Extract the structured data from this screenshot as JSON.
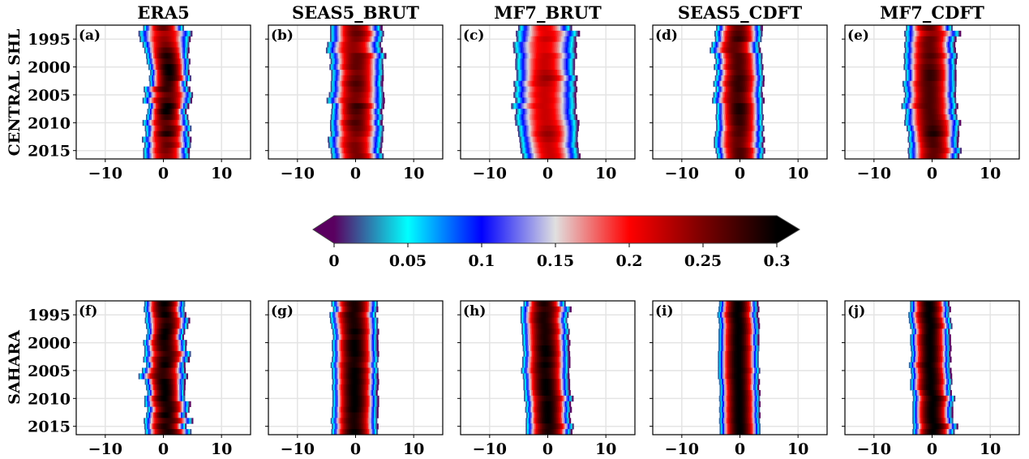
{
  "chart_data": {
    "type": "heatmap",
    "description": "Yearly distributions (density) along x for 10 panels, colored by value",
    "rows": [
      {
        "row_label": "CENTRAL SHL",
        "panels": [
          "a",
          "b",
          "c",
          "d",
          "e"
        ]
      },
      {
        "row_label": "SAHARA",
        "panels": [
          "f",
          "g",
          "h",
          "i",
          "j"
        ]
      }
    ],
    "x_axis": {
      "range": [
        -15,
        15
      ],
      "ticks": [
        -10,
        0,
        10
      ],
      "tick_labels": [
        "−10",
        "0",
        "10"
      ],
      "grid": true
    },
    "y_axis": {
      "range": [
        1992.5,
        2016.5
      ],
      "ticks": [
        1995,
        2000,
        2005,
        2010,
        2015
      ],
      "tick_labels": [
        "1995",
        "2000",
        "2005",
        "2010",
        "2015"
      ],
      "grid": true,
      "inverted": true
    },
    "years": [
      1993,
      1994,
      1995,
      1996,
      1997,
      1998,
      1999,
      2000,
      2001,
      2002,
      2003,
      2004,
      2005,
      2006,
      2007,
      2008,
      2009,
      2010,
      2011,
      2012,
      2013,
      2014,
      2015,
      2016
    ],
    "colorbar": {
      "range": [
        0,
        0.3
      ],
      "ticks": [
        0,
        0.05,
        0.1,
        0.15,
        0.2,
        0.25,
        0.3
      ],
      "tick_labels": [
        "0",
        "0.05",
        "0.1",
        "0.15",
        "0.2",
        "0.25",
        "0.3"
      ],
      "extend": "both",
      "stops": [
        {
          "v": 0.0,
          "color": "#5a0060"
        },
        {
          "v": 0.05,
          "color": "#00ffff"
        },
        {
          "v": 0.1,
          "color": "#0000ff"
        },
        {
          "v": 0.15,
          "color": "#e0e0e0"
        },
        {
          "v": 0.2,
          "color": "#ff0000"
        },
        {
          "v": 0.25,
          "color": "#7a0000"
        },
        {
          "v": 0.3,
          "color": "#000000"
        }
      ]
    },
    "panels": [
      {
        "id": "a",
        "label": "(a)",
        "title": "ERA5",
        "center": [
          0.0,
          0.3,
          0.2,
          0.4,
          0.5,
          0.6,
          0.8,
          0.9,
          1.0,
          1.1,
          0.8,
          0.5,
          0.9,
          0.6,
          0.8,
          0.5,
          0.6,
          0.4,
          0.8,
          0.6,
          0.5,
          0.7,
          0.4,
          0.5
        ],
        "halfwidth": [
          3.5,
          4.6,
          4.3,
          4.0,
          3.8,
          3.6,
          3.7,
          3.5,
          3.3,
          3.6,
          3.2,
          3.9,
          4.1,
          4.2,
          3.4,
          3.3,
          3.6,
          4.0,
          4.0,
          3.7,
          4.2,
          4.0,
          3.9,
          4.0
        ],
        "peak": [
          0.26,
          0.23,
          0.24,
          0.25,
          0.27,
          0.29,
          0.28,
          0.3,
          0.3,
          0.29,
          0.28,
          0.28,
          0.26,
          0.27,
          0.3,
          0.3,
          0.28,
          0.26,
          0.27,
          0.29,
          0.25,
          0.26,
          0.25,
          0.24
        ]
      },
      {
        "id": "b",
        "label": "(b)",
        "title": "SEAS5_BRUT",
        "center": [
          0.0,
          0.2,
          0.1,
          -0.3,
          -0.3,
          0.3,
          0.2,
          0.1,
          0.3,
          0.2,
          0.1,
          0.2,
          0.1,
          -0.1,
          0.3,
          0.1,
          0.2,
          0.0,
          0.2,
          0.2,
          -0.1,
          -0.1,
          0.0,
          0.3
        ],
        "halfwidth": [
          4.4,
          4.6,
          4.5,
          4.6,
          4.8,
          4.8,
          4.5,
          4.6,
          4.5,
          4.4,
          4.4,
          4.5,
          4.7,
          4.9,
          4.4,
          4.3,
          4.5,
          4.4,
          4.6,
          4.5,
          4.7,
          4.6,
          4.3,
          4.5
        ],
        "peak": [
          0.25,
          0.26,
          0.25,
          0.24,
          0.24,
          0.26,
          0.26,
          0.26,
          0.25,
          0.26,
          0.27,
          0.26,
          0.25,
          0.25,
          0.28,
          0.27,
          0.26,
          0.27,
          0.26,
          0.25,
          0.24,
          0.25,
          0.25,
          0.25
        ]
      },
      {
        "id": "c",
        "label": "(c)",
        "title": "MF7_BRUT",
        "center": [
          -0.5,
          -0.1,
          -0.3,
          -0.6,
          -0.6,
          -0.3,
          -0.5,
          -0.5,
          -0.4,
          -0.2,
          -0.6,
          -0.4,
          -0.6,
          -0.4,
          -0.7,
          -0.4,
          -0.4,
          -0.2,
          0.0,
          0.0,
          0.1,
          0.1,
          0.3,
          0.5
        ],
        "halfwidth": [
          4.6,
          5.4,
          5.1,
          5.4,
          5.3,
          5.2,
          5.1,
          5.1,
          5.0,
          5.2,
          5.3,
          5.3,
          5.3,
          5.2,
          5.6,
          5.1,
          5.3,
          5.4,
          5.2,
          5.1,
          5.0,
          4.9,
          5.0,
          4.9
        ],
        "peak": [
          0.21,
          0.21,
          0.22,
          0.21,
          0.21,
          0.22,
          0.22,
          0.22,
          0.23,
          0.24,
          0.23,
          0.22,
          0.22,
          0.22,
          0.22,
          0.22,
          0.22,
          0.22,
          0.23,
          0.24,
          0.23,
          0.22,
          0.22,
          0.22
        ]
      },
      {
        "id": "d",
        "label": "(d)",
        "title": "SEAS5_CDFT",
        "center": [
          -0.2,
          -0.3,
          -0.3,
          -0.8,
          -0.9,
          -0.3,
          -0.2,
          -0.3,
          -0.1,
          -0.1,
          -0.3,
          -0.2,
          -0.4,
          -0.4,
          -0.1,
          -0.1,
          -0.1,
          -0.1,
          0.0,
          -0.2,
          -0.2,
          -0.3,
          0.0,
          0.0
        ],
        "halfwidth": [
          3.9,
          4.1,
          4.0,
          4.1,
          4.3,
          4.1,
          4.0,
          4.2,
          4.0,
          4.2,
          4.3,
          4.0,
          4.2,
          4.4,
          4.0,
          4.0,
          4.1,
          4.0,
          4.1,
          4.1,
          4.3,
          4.2,
          4.2,
          4.0
        ],
        "peak": [
          0.26,
          0.27,
          0.28,
          0.26,
          0.26,
          0.27,
          0.27,
          0.27,
          0.27,
          0.28,
          0.28,
          0.28,
          0.27,
          0.27,
          0.29,
          0.29,
          0.28,
          0.28,
          0.27,
          0.27,
          0.26,
          0.26,
          0.27,
          0.27
        ]
      },
      {
        "id": "e",
        "label": "(e)",
        "title": "MF7_CDFT",
        "center": [
          -0.5,
          0.0,
          -0.3,
          -0.5,
          -0.4,
          -0.3,
          -0.4,
          -0.4,
          -0.3,
          -0.3,
          -0.5,
          -0.4,
          -0.4,
          -0.4,
          -0.5,
          -0.3,
          -0.2,
          0.0,
          0.1,
          0.2,
          0.1,
          0.2,
          0.4,
          0.2
        ],
        "halfwidth": [
          4.0,
          4.8,
          4.3,
          4.3,
          4.3,
          4.6,
          4.4,
          4.5,
          4.3,
          4.3,
          4.6,
          4.5,
          4.3,
          4.5,
          4.8,
          4.3,
          4.5,
          4.8,
          4.5,
          4.3,
          4.3,
          4.2,
          4.6,
          4.3
        ],
        "peak": [
          0.26,
          0.24,
          0.26,
          0.26,
          0.26,
          0.27,
          0.26,
          0.27,
          0.28,
          0.28,
          0.27,
          0.27,
          0.27,
          0.27,
          0.27,
          0.27,
          0.27,
          0.27,
          0.28,
          0.29,
          0.27,
          0.27,
          0.26,
          0.26
        ]
      },
      {
        "id": "f",
        "label": "(f)",
        "title": "",
        "center": [
          0.2,
          0.1,
          0.3,
          0.6,
          0.6,
          0.4,
          0.2,
          0.2,
          0.3,
          0.7,
          0.4,
          0.3,
          0.0,
          -0.1,
          0.2,
          0.3,
          0.4,
          0.2,
          0.6,
          0.8,
          0.4,
          0.8,
          0.3,
          0.8
        ],
        "halfwidth": [
          3.5,
          3.5,
          3.4,
          3.8,
          3.6,
          3.2,
          3.2,
          3.7,
          3.6,
          4.0,
          3.9,
          3.3,
          3.7,
          4.2,
          3.4,
          3.3,
          3.2,
          3.5,
          3.9,
          3.6,
          3.4,
          4.2,
          3.6,
          4.0
        ],
        "peak": [
          0.3,
          0.29,
          0.3,
          0.28,
          0.29,
          0.3,
          0.3,
          0.29,
          0.29,
          0.28,
          0.29,
          0.3,
          0.28,
          0.28,
          0.3,
          0.3,
          0.3,
          0.3,
          0.29,
          0.29,
          0.3,
          0.28,
          0.29,
          0.29
        ]
      },
      {
        "id": "g",
        "label": "(g)",
        "title": "",
        "center": [
          -0.2,
          -0.1,
          -0.5,
          -0.3,
          -0.2,
          -0.1,
          -0.1,
          -0.2,
          -0.2,
          -0.1,
          -0.1,
          -0.3,
          -0.1,
          -0.2,
          -0.1,
          -0.2,
          -0.2,
          -0.1,
          -0.1,
          -0.2,
          -0.2,
          -0.3,
          -0.2,
          -0.2
        ],
        "halfwidth": [
          4.0,
          3.8,
          4.0,
          4.1,
          4.0,
          3.9,
          3.8,
          3.9,
          3.9,
          3.9,
          4.0,
          4.0,
          4.0,
          3.9,
          3.9,
          3.9,
          3.8,
          3.9,
          3.9,
          3.9,
          3.9,
          4.0,
          3.9,
          4.0
        ],
        "peak": [
          0.29,
          0.29,
          0.29,
          0.29,
          0.29,
          0.3,
          0.29,
          0.3,
          0.3,
          0.3,
          0.29,
          0.29,
          0.3,
          0.3,
          0.3,
          0.3,
          0.3,
          0.3,
          0.3,
          0.3,
          0.29,
          0.29,
          0.29,
          0.3
        ]
      },
      {
        "id": "h",
        "label": "(h)",
        "title": "",
        "center": [
          -0.6,
          -0.4,
          -0.6,
          -0.7,
          -0.5,
          -0.4,
          -0.5,
          -0.4,
          -0.4,
          -0.3,
          -0.4,
          -0.4,
          -0.5,
          -0.4,
          -0.3,
          -0.3,
          -0.2,
          0.1,
          0.0,
          0.0,
          0.0,
          0.0,
          0.3,
          0.1
        ],
        "halfwidth": [
          3.6,
          4.3,
          4.1,
          4.0,
          4.0,
          4.1,
          3.9,
          4.0,
          3.9,
          3.9,
          4.0,
          4.0,
          4.1,
          3.9,
          3.9,
          3.9,
          3.9,
          4.2,
          3.8,
          3.9,
          3.7,
          3.8,
          4.1,
          3.9
        ],
        "peak": [
          0.29,
          0.28,
          0.29,
          0.29,
          0.29,
          0.29,
          0.29,
          0.29,
          0.3,
          0.3,
          0.29,
          0.3,
          0.29,
          0.29,
          0.3,
          0.3,
          0.3,
          0.29,
          0.3,
          0.3,
          0.3,
          0.3,
          0.29,
          0.29
        ]
      },
      {
        "id": "i",
        "label": "(i)",
        "title": "",
        "center": [
          -0.3,
          -0.3,
          -0.5,
          -0.3,
          -0.2,
          -0.2,
          -0.3,
          -0.3,
          -0.2,
          -0.3,
          -0.3,
          -0.3,
          -0.2,
          -0.3,
          -0.2,
          -0.2,
          -0.1,
          -0.1,
          -0.1,
          -0.1,
          -0.1,
          -0.1,
          0.0,
          0.0
        ],
        "halfwidth": [
          3.3,
          3.4,
          3.4,
          3.4,
          3.4,
          3.5,
          3.4,
          3.4,
          3.5,
          3.5,
          3.5,
          3.5,
          3.6,
          3.5,
          3.4,
          3.3,
          3.4,
          3.5,
          3.4,
          3.5,
          3.4,
          3.5,
          3.5,
          3.5
        ],
        "peak": [
          0.3,
          0.3,
          0.3,
          0.3,
          0.3,
          0.3,
          0.3,
          0.3,
          0.3,
          0.3,
          0.3,
          0.3,
          0.3,
          0.3,
          0.3,
          0.3,
          0.3,
          0.3,
          0.3,
          0.3,
          0.3,
          0.3,
          0.3,
          0.3
        ]
      },
      {
        "id": "j",
        "label": "(j)",
        "title": "",
        "center": [
          -0.5,
          -0.4,
          -0.6,
          -0.4,
          -0.2,
          -0.3,
          -0.4,
          -0.4,
          -0.3,
          -0.3,
          -0.3,
          -0.5,
          -0.3,
          -0.2,
          -0.2,
          -0.3,
          -0.1,
          0.3,
          0.1,
          0.0,
          0.0,
          0.1,
          0.5,
          0.2
        ],
        "halfwidth": [
          3.3,
          3.4,
          3.5,
          3.6,
          3.6,
          3.2,
          3.4,
          3.4,
          3.4,
          3.3,
          3.4,
          3.5,
          3.4,
          3.4,
          3.6,
          3.5,
          3.3,
          3.6,
          3.5,
          3.4,
          3.4,
          3.5,
          3.8,
          3.6
        ],
        "peak": [
          0.3,
          0.3,
          0.3,
          0.3,
          0.3,
          0.3,
          0.3,
          0.3,
          0.3,
          0.3,
          0.3,
          0.3,
          0.3,
          0.3,
          0.3,
          0.3,
          0.3,
          0.3,
          0.3,
          0.3,
          0.3,
          0.3,
          0.3,
          0.3
        ]
      }
    ]
  }
}
